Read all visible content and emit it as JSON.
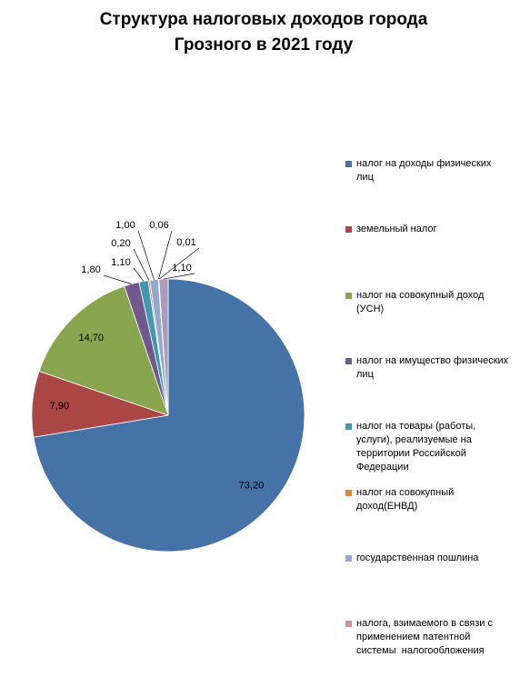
{
  "chart_data": {
    "type": "pie",
    "title": [
      "Структура налоговых доходов города",
      "Грозного в 2021 году"
    ],
    "categories": [
      "налог на доходы физических лиц",
      "земельный налог",
      "налог на совокупный доход (УСН)",
      "налог на имущество физических лиц",
      "налог на товары (работы, услуги), реализуемые на территории Российской Федерации",
      "налог на совокупный доход(ЕНВД)",
      "государственная пошлина",
      "налога, взимаемого в связи с применением патентной системы  налогообложения",
      null,
      null
    ],
    "values": [
      73.2,
      7.9,
      14.7,
      1.8,
      1.1,
      0.2,
      1.0,
      0.06,
      0.01,
      1.1
    ],
    "value_labels": [
      "73,20",
      "7,90",
      "14,70",
      "1,80",
      "1,10",
      "0,20",
      "1,00",
      "0,06",
      "0,01",
      "1,10"
    ],
    "colors": [
      "#4572a7",
      "#aa4643",
      "#89a54e",
      "#71588f",
      "#4198af",
      "#db843d",
      "#93a9cf",
      "#d19392",
      "#b9cd96",
      "#a99bbd"
    ],
    "legend": "right"
  }
}
